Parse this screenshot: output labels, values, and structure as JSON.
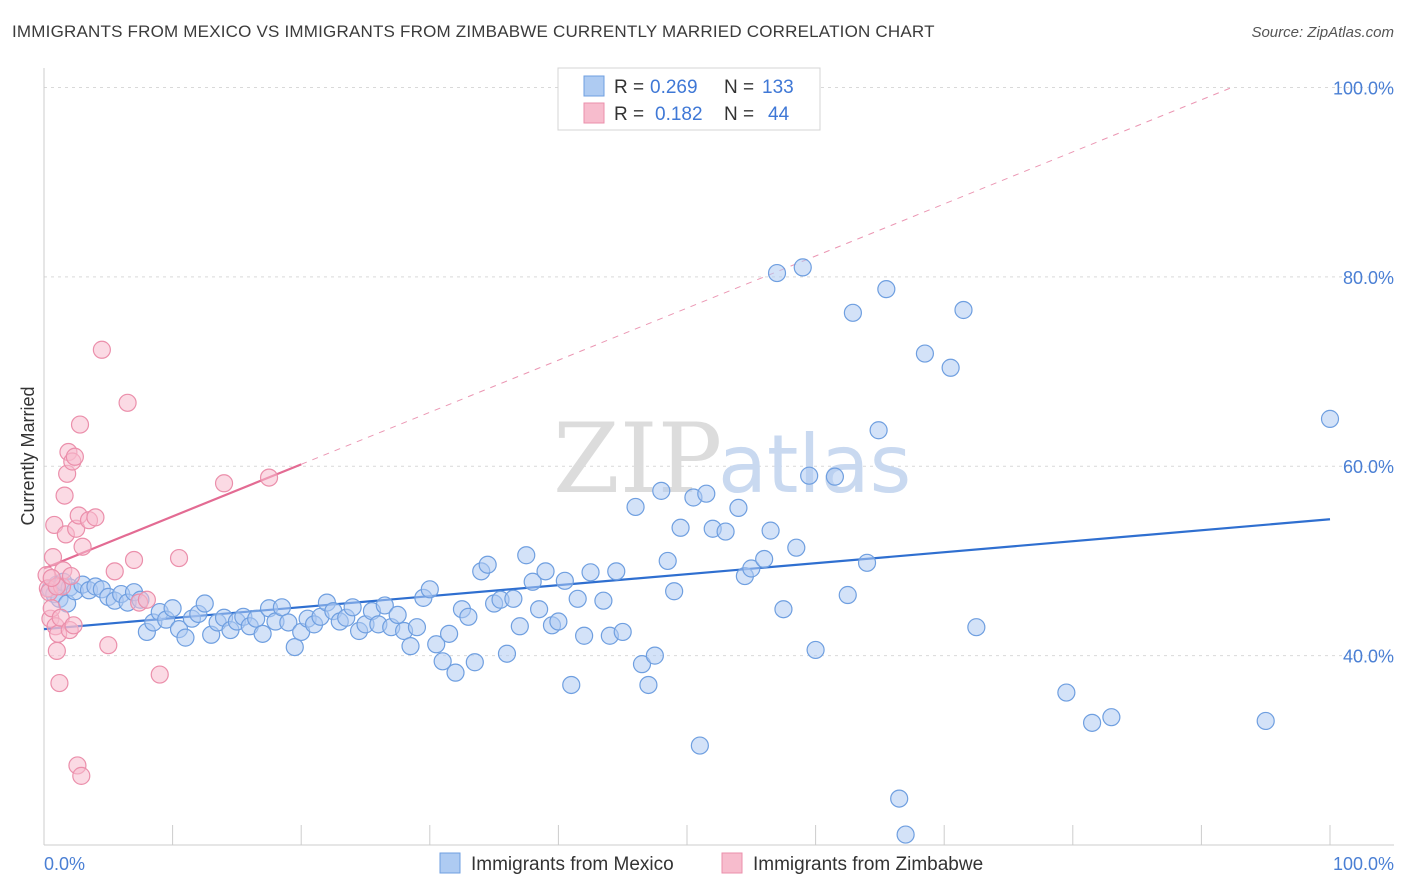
{
  "header": {
    "title": "IMMIGRANTS FROM MEXICO VS IMMIGRANTS FROM ZIMBABWE CURRENTLY MARRIED CORRELATION CHART",
    "source": "Source: ZipAtlas.com"
  },
  "watermark": {
    "zip": "ZIP",
    "atlas": "atlas"
  },
  "colors": {
    "mexico_fill": "#aecbf2",
    "mexico_stroke": "#6f9fe0",
    "mexico_line": "#2f6fd0",
    "zimbabwe_fill": "#f7bccd",
    "zimbabwe_stroke": "#eb8fab",
    "zimbabwe_line": "#e36b93",
    "tick_text": "#4a7fd4",
    "grid": "#d9d9d9"
  },
  "legend": {
    "rows": [
      {
        "r_label": "R =",
        "r_value": "0.269",
        "n_label": "N =",
        "n_value": "133"
      },
      {
        "r_label": "R =",
        "n_label": "N =",
        "r_value": "0.182",
        "n_value": "44"
      }
    ]
  },
  "chart_data": {
    "type": "scatter",
    "xlabel": "",
    "ylabel": "Currently Married",
    "xlim": [
      0,
      100
    ],
    "ylim": [
      20,
      101
    ],
    "x_tick_labels": [
      "0.0%",
      "100.0%"
    ],
    "y_ticks": [
      40,
      60,
      80,
      100
    ],
    "y_tick_labels": [
      "40.0%",
      "60.0%",
      "80.0%",
      "100.0%"
    ],
    "grid": true,
    "legend_position": "top-center",
    "series": [
      {
        "name": "Immigrants from Mexico",
        "trend": {
          "x": [
            0,
            100
          ],
          "y": [
            42.8,
            54.4
          ]
        },
        "points": [
          [
            0.5,
            47.0
          ],
          [
            0.8,
            46.5
          ],
          [
            1.0,
            47.5
          ],
          [
            1.2,
            46.0
          ],
          [
            1.5,
            47.8
          ],
          [
            1.8,
            45.5
          ],
          [
            2.0,
            47.2
          ],
          [
            2.4,
            46.8
          ],
          [
            3.0,
            47.5
          ],
          [
            3.5,
            46.9
          ],
          [
            4.0,
            47.3
          ],
          [
            4.5,
            47.0
          ],
          [
            5.0,
            46.2
          ],
          [
            5.5,
            45.8
          ],
          [
            6.0,
            46.5
          ],
          [
            6.5,
            45.6
          ],
          [
            7.0,
            46.7
          ],
          [
            7.5,
            45.9
          ],
          [
            8.0,
            42.5
          ],
          [
            8.5,
            43.5
          ],
          [
            9.0,
            44.6
          ],
          [
            9.5,
            43.8
          ],
          [
            10.0,
            45.0
          ],
          [
            10.5,
            42.8
          ],
          [
            11.0,
            41.9
          ],
          [
            11.5,
            43.9
          ],
          [
            12.0,
            44.4
          ],
          [
            12.5,
            45.5
          ],
          [
            13.0,
            42.2
          ],
          [
            13.5,
            43.5
          ],
          [
            14.0,
            44.0
          ],
          [
            14.5,
            42.7
          ],
          [
            15.0,
            43.6
          ],
          [
            15.5,
            44.1
          ],
          [
            16.0,
            43.1
          ],
          [
            16.5,
            43.9
          ],
          [
            17.0,
            42.3
          ],
          [
            17.5,
            45.0
          ],
          [
            18.0,
            43.6
          ],
          [
            18.5,
            45.1
          ],
          [
            19.0,
            43.5
          ],
          [
            19.5,
            40.9
          ],
          [
            20.0,
            42.5
          ],
          [
            20.5,
            43.9
          ],
          [
            21.0,
            43.3
          ],
          [
            21.5,
            44.1
          ],
          [
            22.0,
            45.6
          ],
          [
            22.5,
            44.7
          ],
          [
            23.0,
            43.6
          ],
          [
            23.5,
            44.0
          ],
          [
            24.0,
            45.1
          ],
          [
            24.5,
            42.6
          ],
          [
            25.0,
            43.3
          ],
          [
            25.5,
            44.7
          ],
          [
            26.0,
            43.3
          ],
          [
            26.5,
            45.3
          ],
          [
            27.0,
            43.0
          ],
          [
            27.5,
            44.3
          ],
          [
            28.0,
            42.6
          ],
          [
            28.5,
            41.0
          ],
          [
            29.0,
            43.0
          ],
          [
            29.5,
            46.1
          ],
          [
            30.0,
            47.0
          ],
          [
            30.5,
            41.2
          ],
          [
            31.0,
            39.4
          ],
          [
            31.5,
            42.3
          ],
          [
            32.0,
            38.2
          ],
          [
            32.5,
            44.9
          ],
          [
            33.0,
            44.1
          ],
          [
            33.5,
            39.3
          ],
          [
            34.0,
            48.9
          ],
          [
            34.5,
            49.6
          ],
          [
            35.0,
            45.5
          ],
          [
            35.5,
            45.9
          ],
          [
            36.0,
            40.2
          ],
          [
            36.5,
            46.0
          ],
          [
            37.0,
            43.1
          ],
          [
            37.5,
            50.6
          ],
          [
            38.0,
            47.8
          ],
          [
            38.5,
            44.9
          ],
          [
            39.0,
            48.9
          ],
          [
            39.5,
            43.2
          ],
          [
            40.0,
            43.6
          ],
          [
            40.5,
            47.9
          ],
          [
            41.0,
            36.9
          ],
          [
            41.5,
            46.0
          ],
          [
            42.0,
            42.1
          ],
          [
            42.5,
            48.8
          ],
          [
            43.5,
            45.8
          ],
          [
            44.0,
            42.1
          ],
          [
            44.5,
            48.9
          ],
          [
            45.0,
            42.5
          ],
          [
            46.0,
            55.7
          ],
          [
            46.5,
            39.1
          ],
          [
            47.0,
            36.9
          ],
          [
            47.5,
            40.0
          ],
          [
            48.0,
            57.4
          ],
          [
            48.5,
            50.0
          ],
          [
            49.0,
            46.8
          ],
          [
            49.5,
            53.5
          ],
          [
            50.5,
            56.7
          ],
          [
            51.0,
            30.5
          ],
          [
            51.5,
            57.1
          ],
          [
            52.0,
            53.4
          ],
          [
            53.0,
            53.1
          ],
          [
            54.0,
            55.6
          ],
          [
            54.5,
            48.4
          ],
          [
            55.0,
            49.2
          ],
          [
            56.0,
            50.2
          ],
          [
            56.5,
            53.2
          ],
          [
            57.0,
            80.4
          ],
          [
            57.5,
            44.9
          ],
          [
            58.5,
            51.4
          ],
          [
            59.0,
            81.0
          ],
          [
            59.5,
            59.0
          ],
          [
            60.0,
            40.6
          ],
          [
            61.5,
            58.9
          ],
          [
            62.5,
            46.4
          ],
          [
            62.9,
            76.2
          ],
          [
            64.0,
            49.8
          ],
          [
            64.9,
            63.8
          ],
          [
            65.5,
            78.7
          ],
          [
            66.5,
            24.9
          ],
          [
            67.0,
            21.1
          ],
          [
            68.5,
            71.9
          ],
          [
            70.5,
            70.4
          ],
          [
            71.5,
            76.5
          ],
          [
            72.5,
            43.0
          ],
          [
            79.5,
            36.1
          ],
          [
            81.5,
            32.9
          ],
          [
            83.0,
            33.5
          ],
          [
            95.0,
            33.1
          ],
          [
            100.0,
            65.0
          ]
        ]
      },
      {
        "name": "Immigrants from Zimbabwe",
        "trend": {
          "x": [
            0,
            20
          ],
          "y": [
            49.2,
            60.2
          ]
        },
        "points": [
          [
            0.2,
            48.5
          ],
          [
            0.3,
            47.1
          ],
          [
            0.4,
            46.7
          ],
          [
            0.5,
            43.9
          ],
          [
            0.6,
            45.0
          ],
          [
            0.7,
            50.4
          ],
          [
            0.8,
            53.8
          ],
          [
            0.9,
            43.1
          ],
          [
            1.0,
            40.5
          ],
          [
            1.1,
            42.3
          ],
          [
            1.2,
            37.1
          ],
          [
            1.3,
            44.0
          ],
          [
            1.4,
            47.3
          ],
          [
            1.5,
            49.0
          ],
          [
            1.6,
            56.9
          ],
          [
            1.7,
            52.8
          ],
          [
            1.8,
            59.2
          ],
          [
            1.9,
            61.5
          ],
          [
            2.0,
            42.7
          ],
          [
            2.1,
            48.4
          ],
          [
            2.2,
            60.5
          ],
          [
            2.3,
            43.2
          ],
          [
            2.4,
            61.0
          ],
          [
            2.5,
            53.4
          ],
          [
            2.6,
            28.4
          ],
          [
            2.7,
            54.8
          ],
          [
            2.8,
            64.4
          ],
          [
            2.9,
            27.3
          ],
          [
            3.0,
            51.5
          ],
          [
            3.5,
            54.3
          ],
          [
            4.0,
            54.6
          ],
          [
            4.5,
            72.3
          ],
          [
            5.0,
            41.1
          ],
          [
            5.5,
            48.9
          ],
          [
            6.5,
            66.7
          ],
          [
            7.0,
            50.1
          ],
          [
            7.4,
            45.6
          ],
          [
            8.0,
            45.9
          ],
          [
            9.0,
            38.0
          ],
          [
            10.5,
            50.3
          ],
          [
            14.0,
            58.2
          ],
          [
            17.5,
            58.8
          ],
          [
            1.0,
            47.3
          ],
          [
            0.6,
            48.2
          ]
        ]
      }
    ]
  },
  "bottom_legend": {
    "items": [
      {
        "label": "Immigrants from Mexico"
      },
      {
        "label": "Immigrants from Zimbabwe"
      }
    ]
  }
}
